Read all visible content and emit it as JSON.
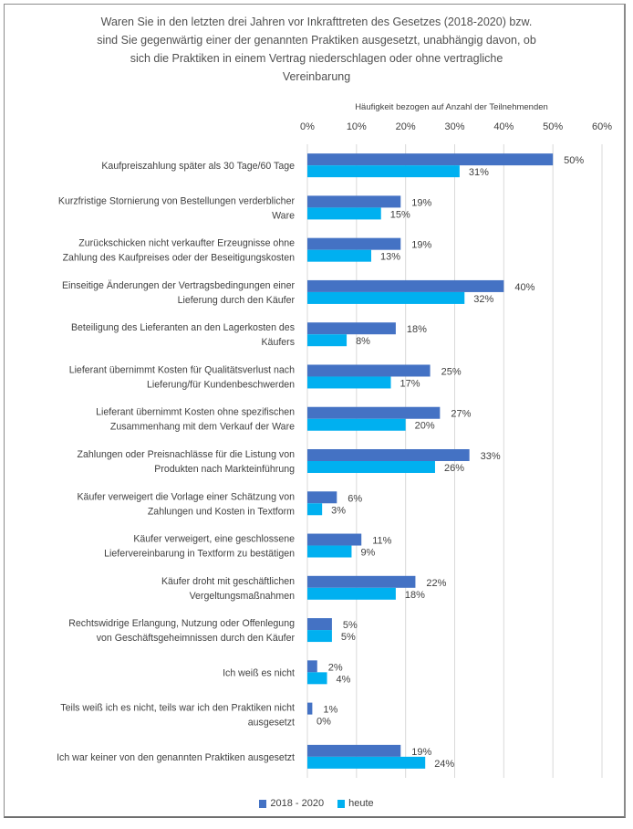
{
  "chart_data": {
    "type": "bar",
    "orientation": "horizontal",
    "title": "Waren Sie in den letzten drei Jahren vor Inkrafttreten des Gesetzes (2018-2020) bzw. sind Sie gegenwärtig einer der genannten Praktiken ausgesetzt, unabhängig davon, ob sich die Praktiken in einem Vertrag niederschlagen oder ohne vertragliche Vereinbarung",
    "title_lines": [
      "Waren Sie in den letzten drei Jahren vor Inkrafttreten des Gesetzes (2018-2020) bzw.",
      "sind Sie gegenwärtig einer der genannten Praktiken ausgesetzt, unabhängig davon, ob",
      "sich die Praktiken in einem Vertrag niederschlagen oder ohne vertragliche",
      "Vereinbarung"
    ],
    "xlabel": "Häufigkeit bezogen auf Anzahl der Teilnehmenden",
    "ylabel": "",
    "xlim": [
      0,
      60
    ],
    "xticks": [
      "0%",
      "10%",
      "20%",
      "30%",
      "40%",
      "50%",
      "60%"
    ],
    "grid": true,
    "legend_position": "bottom",
    "categories": [
      [
        "Kaufpreiszahlung später als 30 Tage/60 Tage"
      ],
      [
        "Kurzfristige Stornierung von Bestellungen verderblicher",
        "Ware"
      ],
      [
        "Zurückschicken nicht verkaufter Erzeugnisse ohne",
        "Zahlung des Kaufpreises oder der Beseitigungskosten"
      ],
      [
        "Einseitige Änderungen der Vertragsbedingungen einer",
        "Lieferung durch den Käufer"
      ],
      [
        "Beteiligung des Lieferanten an den Lagerkosten des",
        "Käufers"
      ],
      [
        "Lieferant übernimmt Kosten für Qualitätsverlust nach",
        "Lieferung/für Kundenbeschwerden"
      ],
      [
        "Lieferant übernimmt Kosten ohne spezifischen",
        "Zusammenhang mit dem Verkauf der Ware"
      ],
      [
        "Zahlungen oder Preisnachlässe für die Listung von",
        "Produkten nach Markteinführung"
      ],
      [
        "Käufer verweigert die Vorlage einer Schätzung von",
        "Zahlungen und Kosten in Textform"
      ],
      [
        "Käufer verweigert, eine geschlossene",
        "Liefervereinbarung in Textform zu bestätigen"
      ],
      [
        "Käufer droht mit geschäftlichen",
        "Vergeltungsmaßnahmen"
      ],
      [
        "Rechtswidrige Erlangung, Nutzung oder Offenlegung",
        "von Geschäftsgeheimnissen durch den Käufer"
      ],
      [
        "Ich weiß es nicht"
      ],
      [
        "Teils weiß ich es nicht, teils war ich den Praktiken nicht",
        "ausgesetzt"
      ],
      [
        "Ich war keiner von den genannten Praktiken ausgesetzt"
      ]
    ],
    "series": [
      {
        "name": "2018 - 2020",
        "color": "#4472C4",
        "values": [
          50,
          19,
          19,
          40,
          18,
          25,
          27,
          33,
          6,
          11,
          22,
          5,
          2,
          1,
          19
        ]
      },
      {
        "name": "heute",
        "color": "#00B0F0",
        "values": [
          31,
          15,
          13,
          32,
          8,
          17,
          20,
          26,
          3,
          9,
          18,
          5,
          4,
          0,
          24
        ]
      }
    ],
    "value_suffix": "%"
  }
}
